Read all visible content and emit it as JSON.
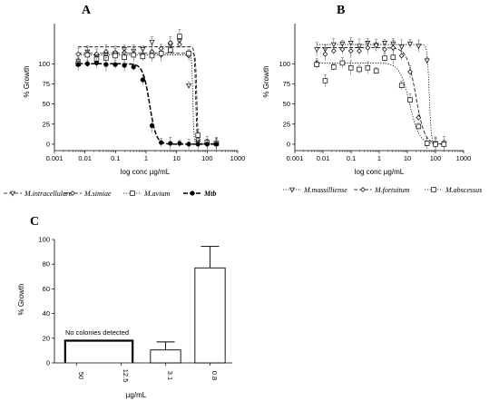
{
  "chart_data": [
    {
      "panel": "A",
      "type": "line",
      "xlabel": "log conc µg/mL",
      "ylabel": "% Growth",
      "xscale": "log",
      "xlim": [
        0.001,
        1000
      ],
      "ylim": [
        -8,
        150
      ],
      "x_ticks": [
        "0.001",
        "0.01",
        "0.1",
        "1",
        "10",
        "100",
        "1000"
      ],
      "y_ticks": [
        "0",
        "25",
        "50",
        "75",
        "100"
      ],
      "legend_position": "bottom",
      "grid": false,
      "series": [
        {
          "name": "M.intracellulare",
          "marker": "triangle-down",
          "line": "dash",
          "x": [
            0.006,
            0.012,
            0.024,
            0.049,
            0.098,
            0.195,
            0.39,
            0.78,
            1.56,
            3.12,
            6.25,
            12.5,
            25,
            50,
            100,
            200
          ],
          "y": [
            103,
            115,
            109,
            111,
            113,
            118,
            116,
            118,
            127,
            111,
            123,
            128,
            73,
            2,
            1,
            1
          ],
          "fit": {
            "top": 121,
            "bottom": 0,
            "ec50": 42,
            "hill": 20
          }
        },
        {
          "name": "M.simiae",
          "marker": "diamond",
          "line": "dash",
          "x": [
            0.006,
            0.012,
            0.024,
            0.049,
            0.098,
            0.195,
            0.39,
            0.78,
            1.56,
            3.12,
            6.25,
            12.5,
            25,
            50,
            100,
            200
          ],
          "y": [
            112,
            112,
            112,
            115,
            114,
            114,
            112,
            111,
            115,
            119,
            126,
            124,
            110,
            6,
            1,
            1
          ],
          "fit": {
            "top": 113,
            "bottom": 0,
            "ec50": 46,
            "hill": 22
          }
        },
        {
          "name": "M.avium",
          "marker": "square",
          "line": "dot",
          "x": [
            0.006,
            0.012,
            0.024,
            0.049,
            0.098,
            0.195,
            0.39,
            0.78,
            1.56,
            3.12,
            6.25,
            12.5,
            25,
            50,
            100,
            200
          ],
          "y": [
            100,
            111,
            106,
            107,
            110,
            108,
            111,
            109,
            110,
            113,
            117,
            134,
            113,
            11,
            2,
            1
          ],
          "fit": {
            "top": 111,
            "bottom": 1,
            "ec50": 34,
            "hill": 25
          }
        },
        {
          "name": "Mtb",
          "marker": "circle-filled",
          "line": "dash-bold",
          "x": [
            0.006,
            0.012,
            0.024,
            0.049,
            0.098,
            0.195,
            0.39,
            0.78,
            1.56,
            3.12,
            6.25,
            12.5,
            25,
            50,
            100,
            200
          ],
          "y": [
            99,
            100,
            101,
            99,
            99,
            98,
            96,
            80,
            23,
            2,
            1,
            1,
            0,
            0,
            0,
            0
          ],
          "fit": {
            "top": 100,
            "bottom": 0,
            "ec50": 1.3,
            "hill": 4
          }
        }
      ]
    },
    {
      "panel": "B",
      "type": "line",
      "xlabel": "log conc µg/mL",
      "ylabel": "% Growth",
      "xscale": "log",
      "xlim": [
        0.001,
        1000
      ],
      "ylim": [
        -8,
        150
      ],
      "x_ticks": [
        "0.001",
        "0.01",
        "0.1",
        "1",
        "10",
        "100",
        "1000"
      ],
      "y_ticks": [
        "0",
        "25",
        "50",
        "75",
        "100"
      ],
      "legend_position": "bottom",
      "grid": false,
      "series": [
        {
          "name": "M.massilliense",
          "marker": "triangle-down",
          "line": "dot",
          "x": [
            0.006,
            0.012,
            0.024,
            0.049,
            0.098,
            0.195,
            0.39,
            0.78,
            1.56,
            3.12,
            6.25,
            12.5,
            25,
            50,
            100,
            200
          ],
          "y": [
            118,
            118,
            124,
            125,
            126,
            122,
            126,
            123,
            126,
            125,
            121,
            125,
            122,
            104,
            1,
            1
          ],
          "fit": {
            "top": 124,
            "bottom": 0,
            "ec50": 60,
            "hill": 12
          }
        },
        {
          "name": "M.fortuitum",
          "marker": "diamond",
          "line": "dash",
          "x": [
            0.006,
            0.012,
            0.024,
            0.049,
            0.098,
            0.195,
            0.39,
            0.78,
            1.56,
            3.12,
            6.25,
            12.5,
            25,
            50,
            100,
            200
          ],
          "y": [
            101,
            112,
            116,
            118,
            116,
            116,
            120,
            123,
            118,
            120,
            110,
            90,
            33,
            1,
            0,
            0
          ],
          "fit": {
            "top": 120,
            "bottom": 0,
            "ec50": 20,
            "hill": 2.8
          }
        },
        {
          "name": "M.abscessus",
          "marker": "square",
          "line": "dot",
          "x": [
            0.006,
            0.012,
            0.024,
            0.049,
            0.098,
            0.195,
            0.39,
            0.78,
            1.56,
            3.12,
            6.25,
            12.5,
            25,
            50,
            100,
            200
          ],
          "y": [
            99,
            79,
            96,
            101,
            95,
            93,
            95,
            91,
            107,
            108,
            73,
            55,
            22,
            1,
            0,
            0
          ],
          "fit": {
            "top": 101,
            "bottom": 0,
            "ec50": 12,
            "hill": 2.5
          }
        }
      ]
    },
    {
      "panel": "C",
      "type": "bar",
      "xlabel": "µg/mL",
      "ylabel": "% Growth",
      "ylim": [
        0,
        100
      ],
      "y_ticks": [
        "0",
        "20",
        "40",
        "60",
        "80",
        "100"
      ],
      "categories": [
        "50",
        "12.5",
        "3.1",
        "0.8"
      ],
      "values": [
        0,
        0,
        10.5,
        77
      ],
      "errors": [
        0,
        0,
        6.5,
        17.5
      ],
      "annotation": "No colonies detected",
      "grid": false
    }
  ]
}
